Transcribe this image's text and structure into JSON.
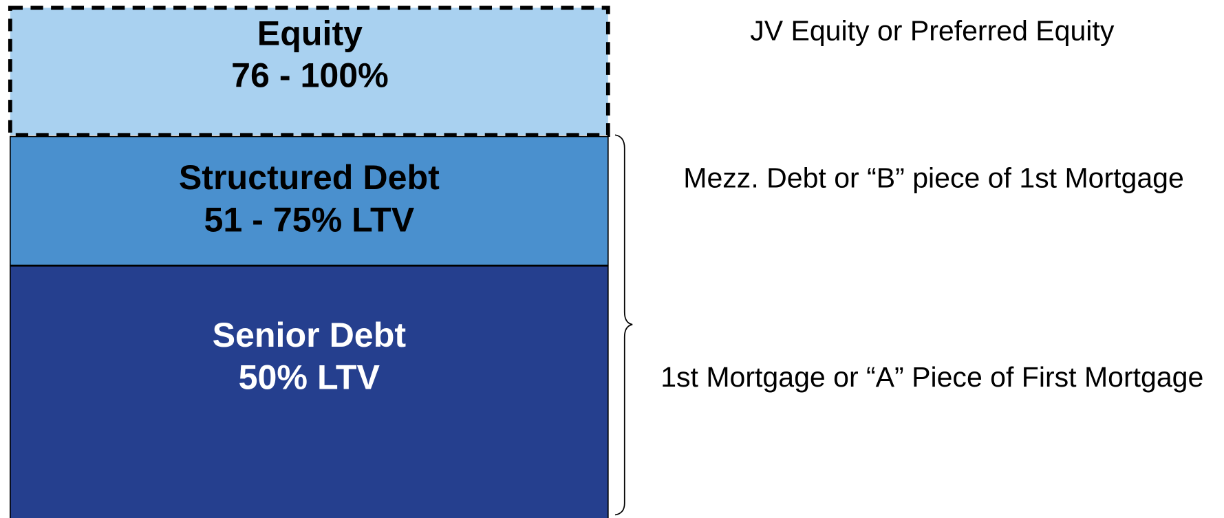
{
  "layers": [
    {
      "title": "Equity",
      "range": "76 - 100%",
      "description": "JV Equity or Preferred Equity"
    },
    {
      "title": "Structured Debt",
      "range": "51 - 75% LTV",
      "description": "Mezz. Debt or “B” piece of 1st Mortgage"
    },
    {
      "title": "Senior Debt",
      "range": "50% LTV",
      "description": "1st Mortgage or “A” Piece of First Mortgage"
    }
  ]
}
